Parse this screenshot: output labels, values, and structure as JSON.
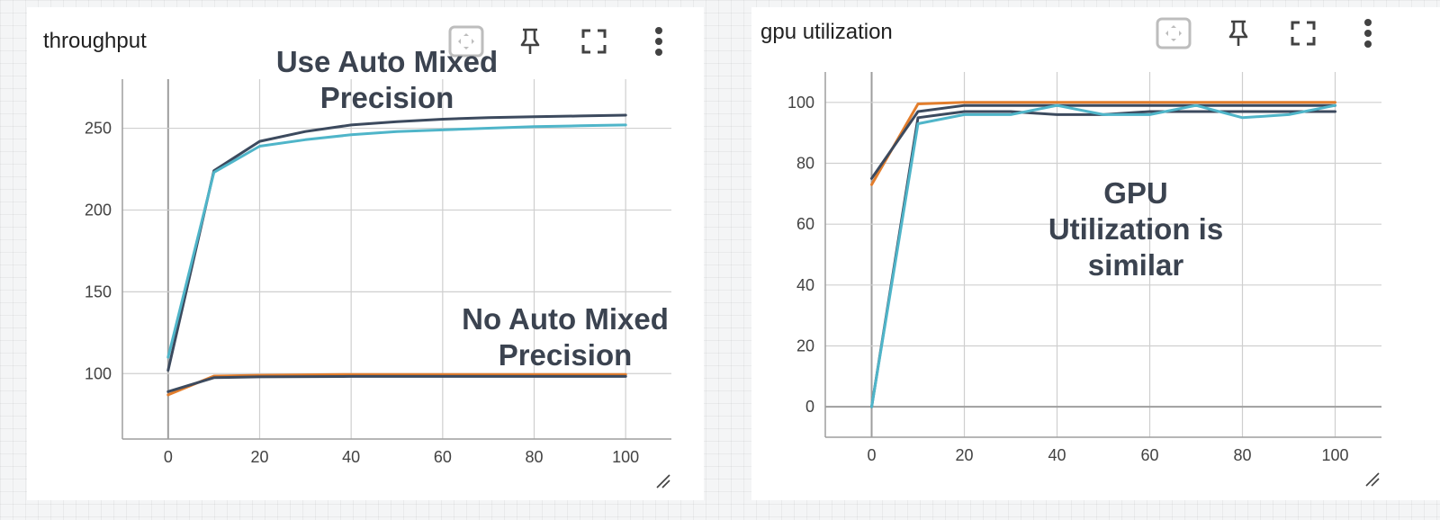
{
  "colors": {
    "dark_series": "#3c4a5e",
    "teal_series": "#4fb5c9",
    "orange_series": "#e27d2c",
    "grid": "#cfcfcf",
    "axis": "#9e9e9e"
  },
  "toolbar_icons": [
    "expand-data-area-icon",
    "pin-icon",
    "fullscreen-icon",
    "more-vert-icon"
  ],
  "cards": [
    {
      "title": "throughput",
      "resize_icon": "resize-handle-icon",
      "chart_data": {
        "type": "line",
        "title": "throughput",
        "xlim": [
          -10,
          110
        ],
        "ylim": [
          60,
          280
        ],
        "xticks": [
          0,
          20,
          40,
          60,
          80,
          100
        ],
        "yticks": [
          100,
          150,
          200,
          250
        ],
        "grid": true,
        "annotations": [
          {
            "lines": [
              "Use Auto Mixed",
              "Precision"
            ]
          },
          {
            "lines": [
              "No Auto Mixed",
              "Precision"
            ]
          }
        ],
        "series": [
          {
            "color": "#3c4a5e",
            "x": [
              0,
              10,
              20,
              30,
              40,
              50,
              60,
              70,
              80,
              90,
              100
            ],
            "y": [
              102,
              224,
              242,
              248,
              252,
              254,
              255.5,
              256.5,
              257,
              257.5,
              258
            ]
          },
          {
            "color": "#4fb5c9",
            "x": [
              0,
              10,
              20,
              30,
              40,
              50,
              60,
              70,
              80,
              90,
              100
            ],
            "y": [
              110,
              223,
              239,
              243,
              246,
              248,
              249,
              250,
              251,
              251.5,
              252
            ]
          },
          {
            "color": "#e27d2c",
            "x": [
              0,
              10,
              20,
              40,
              60,
              80,
              100
            ],
            "y": [
              87,
              98.5,
              99,
              99.5,
              99.5,
              99.5,
              99.5
            ]
          },
          {
            "color": "#3c4a5e",
            "x": [
              0,
              10,
              20,
              40,
              60,
              80,
              100
            ],
            "y": [
              89,
              97.5,
              98,
              98.3,
              98.3,
              98.3,
              98.3
            ]
          }
        ]
      }
    },
    {
      "title": "gpu utilization",
      "resize_icon": "resize-handle-icon",
      "chart_data": {
        "type": "line",
        "title": "gpu utilization",
        "xlim": [
          -10,
          110
        ],
        "ylim": [
          -10,
          110
        ],
        "xticks": [
          0,
          20,
          40,
          60,
          80,
          100
        ],
        "yticks": [
          0,
          20,
          40,
          60,
          80,
          100
        ],
        "grid": true,
        "annotations": [
          {
            "lines": [
              "GPU",
              "Utilization is",
              "similar"
            ]
          }
        ],
        "series": [
          {
            "color": "#e27d2c",
            "x": [
              0,
              10,
              20,
              30,
              40,
              50,
              60,
              70,
              80,
              90,
              100
            ],
            "y": [
              73,
              99.5,
              100,
              100,
              100,
              100,
              100,
              100,
              100,
              100,
              100
            ]
          },
          {
            "color": "#3c4a5e",
            "x": [
              0,
              10,
              20,
              30,
              40,
              50,
              60,
              70,
              80,
              90,
              100
            ],
            "y": [
              75,
              97,
              99,
              99,
              99,
              99,
              99,
              99,
              99,
              99,
              99
            ]
          },
          {
            "color": "#3c4a5e",
            "x": [
              0,
              10,
              20,
              30,
              40,
              50,
              60,
              70,
              80,
              90,
              100
            ],
            "y": [
              0,
              95,
              97,
              97,
              96,
              96,
              97,
              97,
              97,
              97,
              97
            ]
          },
          {
            "color": "#4fb5c9",
            "x": [
              0,
              10,
              20,
              30,
              40,
              50,
              60,
              70,
              80,
              90,
              100
            ],
            "y": [
              0,
              93,
              96,
              96,
              99,
              96,
              96,
              99,
              95,
              96,
              99
            ]
          }
        ]
      }
    }
  ]
}
